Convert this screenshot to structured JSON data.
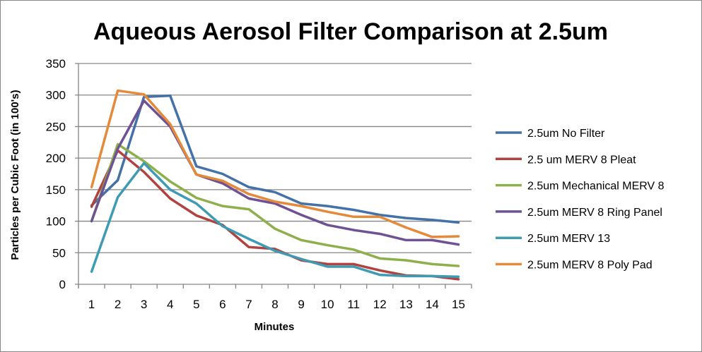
{
  "chart_data": {
    "type": "line",
    "title": "Aqueous Aerosol Filter Comparison at 2.5um",
    "xlabel": "Minutes",
    "ylabel": "Particles per Cubic Foot (in 100's)",
    "ylim": [
      0,
      350
    ],
    "yticks": [
      0,
      50,
      100,
      150,
      200,
      250,
      300,
      350
    ],
    "grid": true,
    "legend": "right",
    "x": [
      1,
      2,
      3,
      4,
      5,
      6,
      7,
      8,
      9,
      10,
      11,
      12,
      13,
      14,
      15
    ],
    "series": [
      {
        "name": "2.5um No Filter",
        "color": "#4472A8",
        "values": [
          125,
          165,
          297,
          299,
          187,
          175,
          154,
          146,
          128,
          124,
          118,
          110,
          105,
          102,
          98
        ]
      },
      {
        "name": "2.5 um MERV 8 Pleat",
        "color": "#B0423F",
        "values": [
          123,
          212,
          178,
          136,
          109,
          94,
          59,
          56,
          38,
          32,
          32,
          22,
          14,
          13,
          8
        ]
      },
      {
        "name": "2.5um Mechanical MERV 8",
        "color": "#8DB04B",
        "values": [
          100,
          222,
          195,
          163,
          137,
          124,
          119,
          88,
          70,
          62,
          55,
          41,
          38,
          32,
          29
        ]
      },
      {
        "name": "2.5um MERV 8 Ring Panel",
        "color": "#6E5294",
        "values": [
          100,
          215,
          291,
          250,
          174,
          160,
          136,
          128,
          110,
          94,
          86,
          80,
          70,
          70,
          63
        ]
      },
      {
        "name": "2.5um MERV 13",
        "color": "#3E9BB3",
        "values": [
          20,
          138,
          192,
          150,
          128,
          92,
          72,
          53,
          40,
          28,
          28,
          15,
          13,
          13,
          12
        ]
      },
      {
        "name": "2.5um MERV 8 Poly Pad",
        "color": "#E48A3A",
        "values": [
          154,
          307,
          301,
          254,
          174,
          164,
          143,
          131,
          124,
          115,
          107,
          107,
          90,
          75,
          76
        ]
      }
    ]
  }
}
